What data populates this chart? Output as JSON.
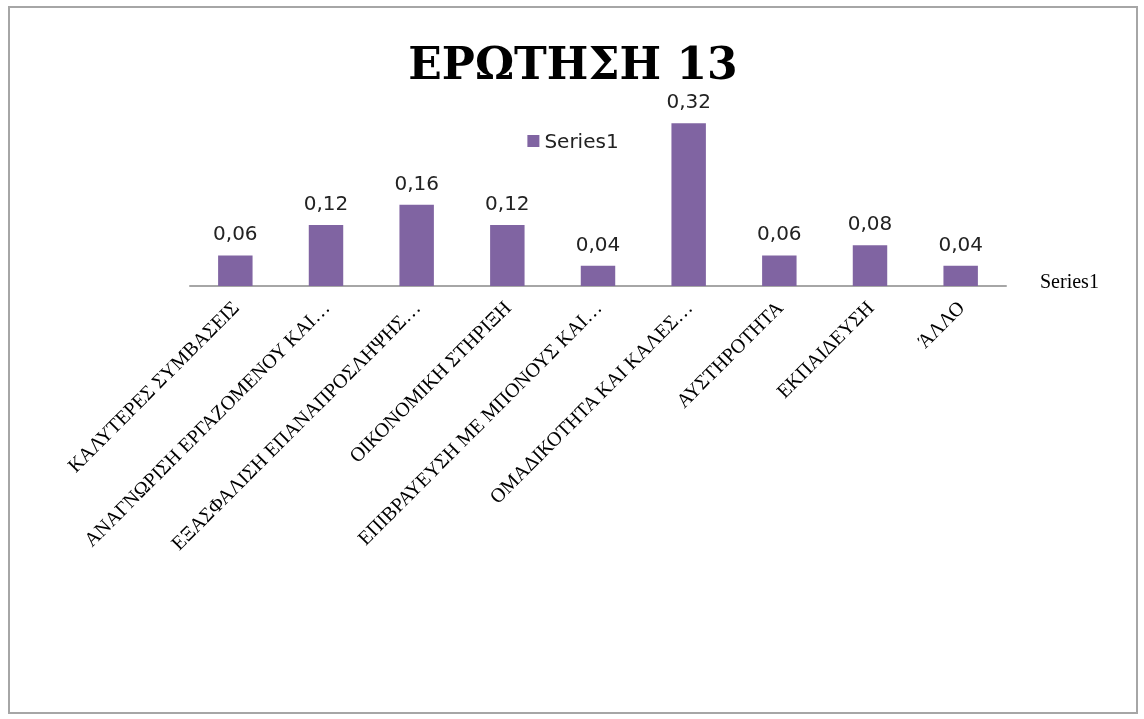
{
  "chart_data": {
    "type": "bar",
    "title": "ΕΡΩΤΗΣΗ 13",
    "categories": [
      "ΚΑΛΥΤΕΡΕΣ ΣΥΜΒΑΣΕΙΣ",
      "ΑΝΑΓΝΩΡΙΣΗ ΕΡΓΑΖΟΜΕΝΟΥ ΚΑΙ…",
      "ΕΞΑΣΦΑΛΙΣΗ ΕΠΑΝΑΠΡΟΣΛΗΨΗΣ…",
      "ΟΙΚΟΝΟΜΙΚΗ ΣΤΗΡΙΞΗ",
      "ΕΠΙΒΡΑΥΕΥΣΗ ΜΕ ΜΠΟΝΟΥΣ ΚΑΙ…",
      "ΟΜΑΔΙΚΟΤΗΤΑ ΚΑΙ ΚΑΛΕΣ…",
      "ΑΥΣΤΗΡΟΤΗΤΑ",
      "ΕΚΠΑΙΔΕΥΣΗ",
      "ΆΛΛΟ"
    ],
    "series": [
      {
        "name": "Series1",
        "color": "#8064a2",
        "values": [
          0.06,
          0.12,
          0.16,
          0.12,
          0.04,
          0.32,
          0.06,
          0.08,
          0.04
        ],
        "value_labels": [
          "0,06",
          "0,12",
          "0,16",
          "0,12",
          "0,04",
          "0,32",
          "0,06",
          "0,08",
          "0,04"
        ]
      }
    ],
    "legend": "top",
    "annotations": [
      "Series1"
    ]
  }
}
